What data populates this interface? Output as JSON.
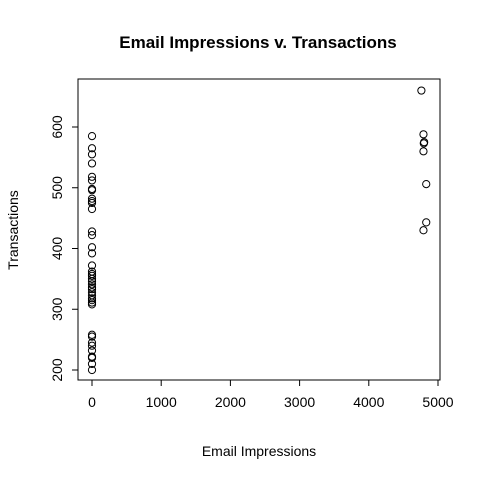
{
  "chart_data": {
    "type": "scatter",
    "title": "Email Impressions v. Transactions",
    "xlabel": "Email Impressions",
    "ylabel": "Transactions",
    "xlim": [
      -200,
      5000
    ],
    "ylim": [
      180,
      680
    ],
    "xticks": [
      0,
      1000,
      2000,
      3000,
      4000,
      5000
    ],
    "yticks": [
      200,
      300,
      400,
      500,
      600
    ],
    "grid": false,
    "series": [
      {
        "points": [
          [
            0,
            585
          ],
          [
            0,
            565
          ],
          [
            0,
            555
          ],
          [
            0,
            540
          ],
          [
            0,
            518
          ],
          [
            0,
            512
          ],
          [
            0,
            498
          ],
          [
            0,
            496
          ],
          [
            0,
            482
          ],
          [
            0,
            478
          ],
          [
            0,
            475
          ],
          [
            0,
            465
          ],
          [
            0,
            428
          ],
          [
            0,
            422
          ],
          [
            0,
            402
          ],
          [
            0,
            392
          ],
          [
            0,
            372
          ],
          [
            0,
            362
          ],
          [
            0,
            358
          ],
          [
            0,
            355
          ],
          [
            0,
            350
          ],
          [
            0,
            346
          ],
          [
            0,
            341
          ],
          [
            0,
            336
          ],
          [
            0,
            333
          ],
          [
            0,
            328
          ],
          [
            0,
            323
          ],
          [
            0,
            318
          ],
          [
            0,
            315
          ],
          [
            0,
            311
          ],
          [
            0,
            308
          ],
          [
            0,
            258
          ],
          [
            0,
            255
          ],
          [
            0,
            245
          ],
          [
            0,
            240
          ],
          [
            0,
            232
          ],
          [
            0,
            222
          ],
          [
            0,
            220
          ],
          [
            0,
            210
          ],
          [
            0,
            200
          ],
          [
            4760,
            660
          ],
          [
            4790,
            588
          ],
          [
            4800,
            575
          ],
          [
            4795,
            573
          ],
          [
            4790,
            560
          ],
          [
            4830,
            506
          ],
          [
            4830,
            443
          ],
          [
            4790,
            430
          ]
        ]
      }
    ]
  }
}
